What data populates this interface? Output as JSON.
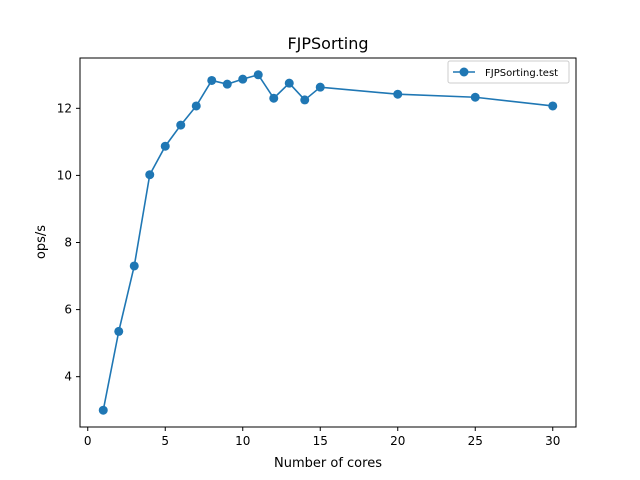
{
  "chart_data": {
    "type": "line",
    "title": "FJPSorting",
    "xlabel": "Number of cores",
    "ylabel": "ops/s",
    "xlim": [
      -0.5,
      31.5
    ],
    "ylim": [
      2.5,
      13.5
    ],
    "xticks": [
      0,
      5,
      10,
      15,
      20,
      25,
      30
    ],
    "yticks": [
      4,
      6,
      8,
      10,
      12
    ],
    "xtick_labels": [
      "0",
      "5",
      "10",
      "15",
      "20",
      "25",
      "30"
    ],
    "ytick_labels": [
      "4",
      "6",
      "8",
      "10",
      "12"
    ],
    "grid": false,
    "legend_position": "top-right",
    "series": [
      {
        "name": "FJPSorting.test",
        "color": "#1f77b4",
        "marker": "circle",
        "x": [
          1,
          2,
          3,
          4,
          5,
          6,
          7,
          8,
          9,
          10,
          11,
          12,
          13,
          14,
          15,
          20,
          25,
          30
        ],
        "y": [
          3.0,
          5.35,
          7.3,
          10.02,
          10.87,
          11.5,
          12.07,
          12.83,
          12.72,
          12.87,
          13.0,
          12.3,
          12.75,
          12.25,
          12.63,
          12.42,
          12.33,
          12.07
        ]
      }
    ]
  }
}
